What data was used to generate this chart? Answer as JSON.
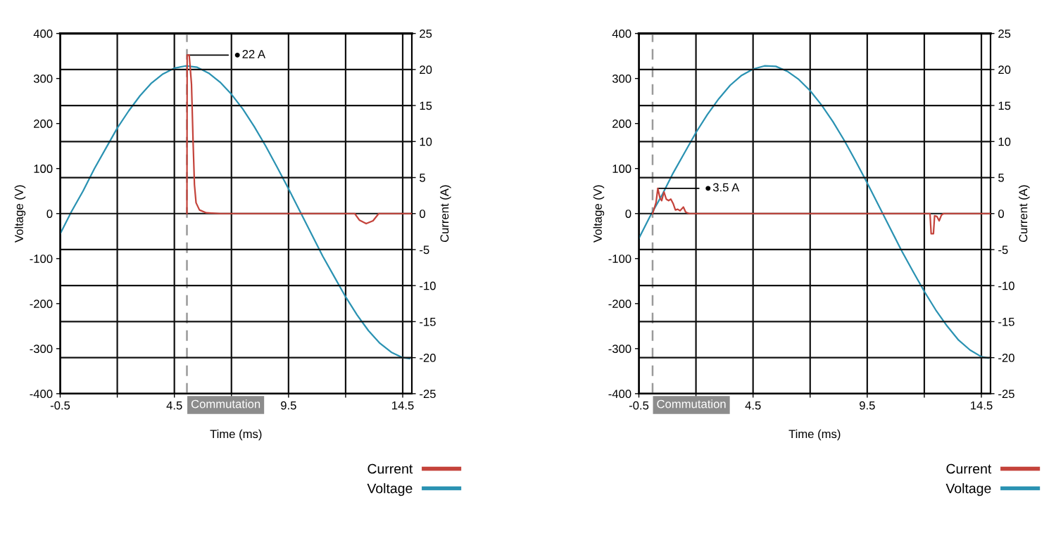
{
  "chart_data": [
    {
      "type": "line",
      "xlabel": "Time (ms)",
      "ylabel": "Voltage (V)",
      "y2label": "Current (A)",
      "xlim": [
        -0.5,
        14.9
      ],
      "xticks": [
        -0.5,
        {
          "value": 2,
          "label": null
        },
        4.5,
        {
          "value": 7,
          "label": null
        },
        9.5,
        {
          "value": 12,
          "label": null
        },
        14.5
      ],
      "ylim": [
        -400,
        400
      ],
      "yticks": [
        -400,
        -300,
        -200,
        -100,
        0,
        100,
        200,
        300,
        400
      ],
      "y2lim": [
        -25,
        25
      ],
      "y2ticks": [
        -25,
        -20,
        -15,
        -10,
        -5,
        0,
        5,
        10,
        15,
        20,
        25
      ],
      "grid": true,
      "legend": "bottom right",
      "line_style": "solid",
      "ref_lines": [
        {
          "axis": "x",
          "value": 5.05,
          "label": "Commutation",
          "color": "#9a9a9a",
          "line_style": "dashed"
        }
      ],
      "annotations": [
        {
          "text": "22 A",
          "x": 5.06,
          "y": 352
        }
      ],
      "series": [
        {
          "name": "Current",
          "color": "#c4433b",
          "axis": "y2",
          "x": [
            5.05,
            5.06,
            5.15,
            5.25,
            5.32,
            5.38,
            5.45,
            5.6,
            5.9,
            6.5,
            12.4,
            12.6,
            12.9,
            13.2,
            13.45,
            14.9
          ],
          "values": [
            0,
            22,
            22,
            18,
            10,
            4,
            1.5,
            0.5,
            0.1,
            0,
            0,
            -0.9,
            -1.4,
            -1.0,
            0,
            0
          ]
        },
        {
          "name": "Voltage",
          "color": "#2a92b2",
          "x": [
            -0.5,
            0,
            0.5,
            1,
            1.5,
            2,
            2.5,
            3,
            3.5,
            4,
            4.5,
            5,
            5.5,
            6,
            6.5,
            7,
            7.5,
            8,
            8.5,
            9,
            9.5,
            10,
            10.5,
            11,
            11.5,
            12,
            12.5,
            13,
            13.5,
            14,
            14.5,
            14.8
          ],
          "values": [
            -45,
            5,
            50,
            100,
            145,
            190,
            228,
            262,
            290,
            310,
            323,
            328,
            325,
            312,
            292,
            265,
            232,
            193,
            150,
            103,
            55,
            5,
            -45,
            -95,
            -140,
            -185,
            -225,
            -260,
            -288,
            -308,
            -320,
            -322
          ]
        }
      ]
    },
    {
      "type": "line",
      "xlabel": "Time (ms)",
      "ylabel": "Voltage (V)",
      "y2label": "Current (A)",
      "xlim": [
        -0.5,
        14.9
      ],
      "xticks": [
        -0.5,
        {
          "value": 2,
          "label": null
        },
        4.5,
        {
          "value": 7,
          "label": null
        },
        9.5,
        {
          "value": 12,
          "label": null
        },
        14.5
      ],
      "ylim": [
        -400,
        400
      ],
      "yticks": [
        -400,
        -300,
        -200,
        -100,
        0,
        100,
        200,
        300,
        400
      ],
      "y2lim": [
        -25,
        25
      ],
      "y2ticks": [
        -25,
        -20,
        -15,
        -10,
        -5,
        0,
        5,
        10,
        15,
        20,
        25
      ],
      "grid": true,
      "legend": "bottom right",
      "line_style": "solid",
      "ref_lines": [
        {
          "axis": "x",
          "value": 0.1,
          "label": "Commutation",
          "color": "#9a9a9a",
          "line_style": "dashed"
        }
      ],
      "annotations": [
        {
          "text": "3.5 A",
          "x": 0.33,
          "y": 56
        }
      ],
      "series": [
        {
          "name": "Current",
          "color": "#c4433b",
          "axis": "y2",
          "x": [
            0.1,
            0.25,
            0.33,
            0.42,
            0.5,
            0.6,
            0.7,
            0.8,
            0.9,
            1.0,
            1.1,
            1.2,
            1.3,
            1.45,
            1.55,
            1.7,
            12.25,
            12.3,
            12.4,
            12.45,
            12.55,
            12.65,
            12.75,
            12.85,
            14.9
          ],
          "values": [
            0,
            1.5,
            3.5,
            2.2,
            1.8,
            3.0,
            2.0,
            1.8,
            2.0,
            1.4,
            0.5,
            0.6,
            0.4,
            0.9,
            0.2,
            0,
            0,
            -2.8,
            -2.8,
            -0.3,
            -0.4,
            -1.0,
            -0.2,
            0,
            0
          ]
        },
        {
          "name": "Voltage",
          "color": "#2a92b2",
          "x": [
            -0.5,
            0,
            0.5,
            1,
            1.5,
            2,
            2.5,
            3,
            3.5,
            4,
            4.5,
            5,
            5.5,
            6,
            6.5,
            7,
            7.5,
            8,
            8.5,
            9,
            9.5,
            10,
            10.5,
            11,
            11.5,
            12,
            12.5,
            13,
            13.5,
            14,
            14.5,
            14.8
          ],
          "values": [
            -55,
            -5,
            40,
            90,
            135,
            180,
            220,
            255,
            285,
            307,
            321,
            328,
            327,
            316,
            298,
            273,
            241,
            204,
            162,
            116,
            68,
            18,
            -32,
            -82,
            -128,
            -173,
            -214,
            -250,
            -281,
            -303,
            -318,
            -321
          ]
        }
      ]
    }
  ]
}
